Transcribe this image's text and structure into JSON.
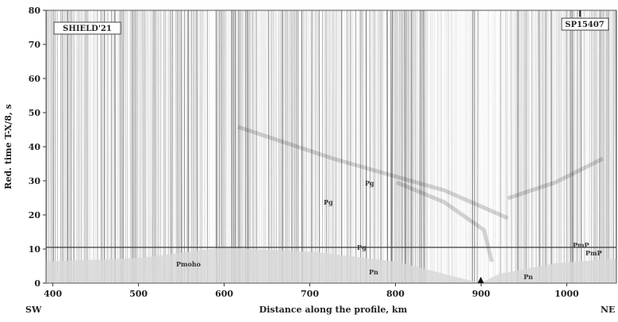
{
  "figure": {
    "y_axis_label": "Red. time T-X/8, s",
    "x_axis_label": "Distance along the profile, km",
    "left_label": "SHIELD'21",
    "right_label": "SP15407",
    "dir_left": "SW",
    "dir_right": "NE",
    "x_ticks": [
      "400",
      "500",
      "600",
      "700",
      "800",
      "900",
      "1000"
    ],
    "y_ticks": [
      "0",
      "10",
      "20",
      "30",
      "40",
      "50",
      "60",
      "70",
      "80"
    ],
    "phases": [
      "Pmoho",
      "Pg",
      "Pg",
      "Pg",
      "PmP",
      "PmP",
      "Pn",
      "Pn"
    ],
    "colors": {
      "trace": "#2a2a2a",
      "frame": "#555555",
      "line": "#444444"
    }
  },
  "chart_data": {
    "type": "scatter",
    "title": "",
    "xlabel": "Distance along the profile, km",
    "ylabel": "Red. time T-X/8, s",
    "xlim": [
      392,
      1058
    ],
    "ylim": [
      0,
      80
    ],
    "grid": false,
    "reference_line_y": 10.5,
    "source_x": 900,
    "source_label": "SP15407",
    "gap_ranges_km": [
      [
        840,
        890
      ],
      [
        900,
        920
      ]
    ]
  }
}
